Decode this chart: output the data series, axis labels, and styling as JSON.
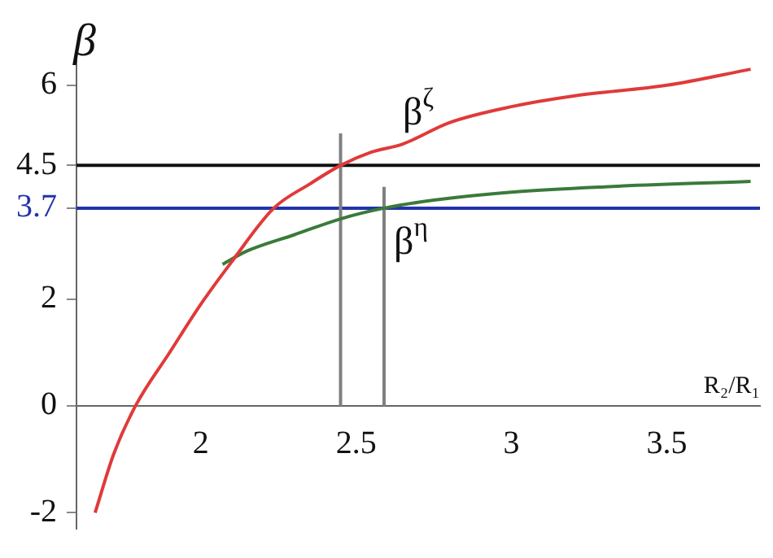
{
  "chart_data": {
    "type": "line",
    "xlabel": "R₂/R₁",
    "ylabel": "β",
    "xlim": [
      1.6,
      3.8
    ],
    "ylim": [
      -2.3,
      6.5
    ],
    "xticks": [
      2,
      2.5,
      3,
      3.5
    ],
    "yticks": [
      -2,
      0,
      2,
      3.7,
      4.5,
      6
    ],
    "grid": false,
    "legend": false,
    "marker": "none",
    "line_style": "solid",
    "series": [
      {
        "name": "β$^{ζ}$",
        "color": "#e03a3a",
        "x": [
          1.66,
          1.72,
          1.79,
          1.9,
          2.0,
          2.1,
          2.235,
          2.35,
          2.45,
          2.55,
          2.65,
          2.8,
          3.0,
          3.2,
          3.5,
          3.77
        ],
        "values": [
          -2.0,
          -0.9,
          0.0,
          1.0,
          1.9,
          2.7,
          3.7,
          4.15,
          4.5,
          4.75,
          4.9,
          5.3,
          5.6,
          5.8,
          6.0,
          6.3
        ]
      },
      {
        "name": "β$^{η}$",
        "color": "#3a7a3a",
        "x": [
          2.07,
          2.15,
          2.3,
          2.45,
          2.59,
          2.75,
          3.0,
          3.3,
          3.77
        ],
        "values": [
          2.65,
          2.9,
          3.2,
          3.5,
          3.7,
          3.85,
          4.0,
          4.1,
          4.2
        ]
      },
      {
        "color": "#808080",
        "x": [
          2.45,
          2.45
        ],
        "values": [
          0,
          5.1
        ]
      },
      {
        "color": "#808080",
        "x": [
          2.59,
          2.59
        ],
        "values": [
          0,
          4.1
        ]
      }
    ],
    "ref_lines": [
      {
        "axis": "y",
        "value": 4.5,
        "color": "#111111"
      },
      {
        "axis": "y",
        "value": 3.7,
        "color": "#2233aa"
      }
    ]
  }
}
